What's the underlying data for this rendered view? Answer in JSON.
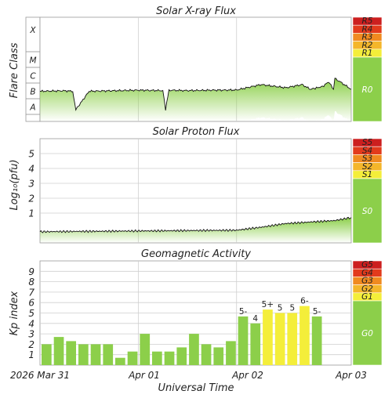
{
  "panels": {
    "xray": {
      "title": "Solar X-ray Flux",
      "ylabel": "Flare Class",
      "class_labels": [
        "X",
        "M",
        "C",
        "B",
        "A"
      ],
      "scale": [
        {
          "label": "R5",
          "color": "#cc1f1f"
        },
        {
          "label": "R4",
          "color": "#e23a1c"
        },
        {
          "label": "R3",
          "color": "#f08a20"
        },
        {
          "label": "R2",
          "color": "#f4b62b"
        },
        {
          "label": "R1",
          "color": "#f4ee3a"
        },
        {
          "label": "R0",
          "color": "#8ccf4a"
        }
      ]
    },
    "proton": {
      "title": "Solar Proton Flux",
      "ylabel": "Log₁₀(pfu)",
      "yticks": [
        "5",
        "4",
        "3",
        "2",
        "1"
      ],
      "scale": [
        {
          "label": "S5",
          "color": "#cc1f1f"
        },
        {
          "label": "S4",
          "color": "#e23a1c"
        },
        {
          "label": "S3",
          "color": "#f08a20"
        },
        {
          "label": "S2",
          "color": "#f4b62b"
        },
        {
          "label": "S1",
          "color": "#f4ee3a"
        },
        {
          "label": "S0",
          "color": "#8ccf4a"
        }
      ]
    },
    "geomag": {
      "title": "Geomagnetic Activity",
      "ylabel": "Kp index",
      "yticks": [
        "9",
        "8",
        "7",
        "6",
        "5",
        "4",
        "3",
        "2",
        "1"
      ],
      "scale": [
        {
          "label": "G5",
          "color": "#cc1f1f"
        },
        {
          "label": "G4",
          "color": "#e23a1c"
        },
        {
          "label": "G3",
          "color": "#f08a20"
        },
        {
          "label": "G2",
          "color": "#f4b62b"
        },
        {
          "label": "G1",
          "color": "#f4ee3a"
        },
        {
          "label": "G0",
          "color": "#8ccf4a"
        }
      ]
    }
  },
  "xaxis": {
    "label": "Universal Time",
    "ticks": [
      "2026 Mar 31",
      "Apr 01",
      "Apr 02",
      "Apr 03"
    ]
  },
  "colors": {
    "green": "#8ccf4a",
    "yellow": "#f4ee3a",
    "grid": "#cfcfcf",
    "trace": "#111111"
  },
  "chart_data": [
    {
      "type": "line",
      "title": "Solar X-ray Flux",
      "ylabel": "Flare Class",
      "yscale": "log",
      "y_class_ticks": [
        "A",
        "B",
        "C",
        "M",
        "X"
      ],
      "x": [
        "2026-03-31 00:00",
        "2026-03-31 06:00",
        "2026-03-31 08:00",
        "2026-03-31 08:45",
        "2026-03-31 12:00",
        "2026-04-01 00:00",
        "2026-04-01 06:00",
        "2026-04-01 06:40",
        "2026-04-01 07:30",
        "2026-04-01 12:00",
        "2026-04-01 18:00",
        "2026-04-02 00:00",
        "2026-04-02 06:00",
        "2026-04-02 12:00",
        "2026-04-02 16:00",
        "2026-04-02 18:00",
        "2026-04-02 21:00",
        "2026-04-02 22:30",
        "2026-04-02 23:40",
        "2026-04-03 00:00",
        "2026-04-03 04:00"
      ],
      "series": [
        {
          "values": [
            3e-07,
            3.2e-07,
            3e-07,
            2e-08,
            3e-07,
            3.5e-07,
            3.3e-07,
            2e-08,
            3.5e-07,
            3.3e-07,
            3.5e-07,
            3.6e-07,
            8e-07,
            5e-07,
            8e-07,
            4e-07,
            6e-07,
            1.2e-06,
            4e-07,
            2e-06,
            4e-07
          ]
        }
      ],
      "xlim": [
        "2026-03-31 00:00",
        "2026-04-03 04:00"
      ]
    },
    {
      "type": "line",
      "title": "Solar Proton Flux",
      "ylabel": "Log₁₀(pfu)",
      "ylim": [
        -1,
        6
      ],
      "x": [
        "2026-03-31 00:00",
        "2026-04-01 00:00",
        "2026-04-02 00:00",
        "2026-04-02 06:00",
        "2026-04-02 12:00",
        "2026-04-02 18:00",
        "2026-04-03 00:00",
        "2026-04-03 04:00"
      ],
      "series": [
        {
          "values": [
            -0.25,
            -0.2,
            -0.15,
            0.05,
            0.3,
            0.4,
            0.5,
            0.7
          ]
        }
      ],
      "xlim": [
        "2026-03-31 00:00",
        "2026-04-03 04:00"
      ]
    },
    {
      "type": "bar",
      "title": "Geomagnetic Activity",
      "ylabel": "Kp index",
      "ylim": [
        0,
        10
      ],
      "categories": [
        "03-31 00",
        "03-31 03",
        "03-31 06",
        "03-31 09",
        "03-31 12",
        "03-31 15",
        "03-31 18",
        "03-31 21",
        "04-01 00",
        "04-01 03",
        "04-01 06",
        "04-01 09",
        "04-01 12",
        "04-01 15",
        "04-01 18",
        "04-01 21",
        "04-02 00",
        "04-02 03",
        "04-02 06",
        "04-02 09",
        "04-02 12",
        "04-02 15",
        "04-02 18",
        "04-02 21"
      ],
      "values": [
        2.0,
        2.7,
        2.3,
        2.0,
        2.0,
        2.0,
        0.7,
        1.3,
        3.0,
        1.3,
        1.3,
        1.7,
        3.0,
        2.0,
        1.7,
        2.3,
        4.67,
        4.0,
        5.33,
        5.0,
        5.0,
        5.67,
        4.67,
        null
      ],
      "bar_labels": [
        "",
        "",
        "",
        "",
        "",
        "",
        "",
        "",
        "",
        "",
        "",
        "",
        "",
        "",
        "",
        "",
        "5-",
        "4",
        "5+",
        "5",
        "5",
        "6-",
        "5-",
        ""
      ],
      "xlim": [
        "2026-03-31 00:00",
        "2026-04-03 04:00"
      ]
    }
  ]
}
